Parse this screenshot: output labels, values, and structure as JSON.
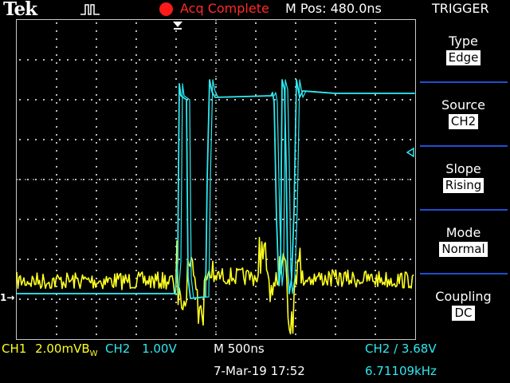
{
  "header": {
    "brand": "Tek",
    "status": "Acq Complete",
    "position": "M Pos: 480.0ns"
  },
  "menu": {
    "title": "TRIGGER",
    "items": [
      {
        "label": "Type",
        "value": "Edge"
      },
      {
        "label": "Source",
        "value": "CH2"
      },
      {
        "label": "Slope",
        "value": "Rising"
      },
      {
        "label": "Mode",
        "value": "Normal"
      },
      {
        "label": "Coupling",
        "value": "DC"
      }
    ]
  },
  "readouts": {
    "ch1": "CH1",
    "ch1_scale": "2.00mV",
    "ch1_bw": "B",
    "ch1_bw_sub": "W",
    "ch2": "CH2",
    "ch2_scale": "1.00V",
    "timebase": "M 500ns",
    "trigger_source": "CH2",
    "trigger_slope_symbol": "/",
    "trigger_level": "3.68V",
    "date": "7-Mar-19 17:52",
    "frequency": "6.71109kHz"
  },
  "markers": {
    "ch1_marker": "1"
  },
  "colors": {
    "ch1": "#ffff20",
    "ch2": "#2fe8f0",
    "acq": "#ff2a2a",
    "menu_separator": "#1f4fd1"
  }
}
